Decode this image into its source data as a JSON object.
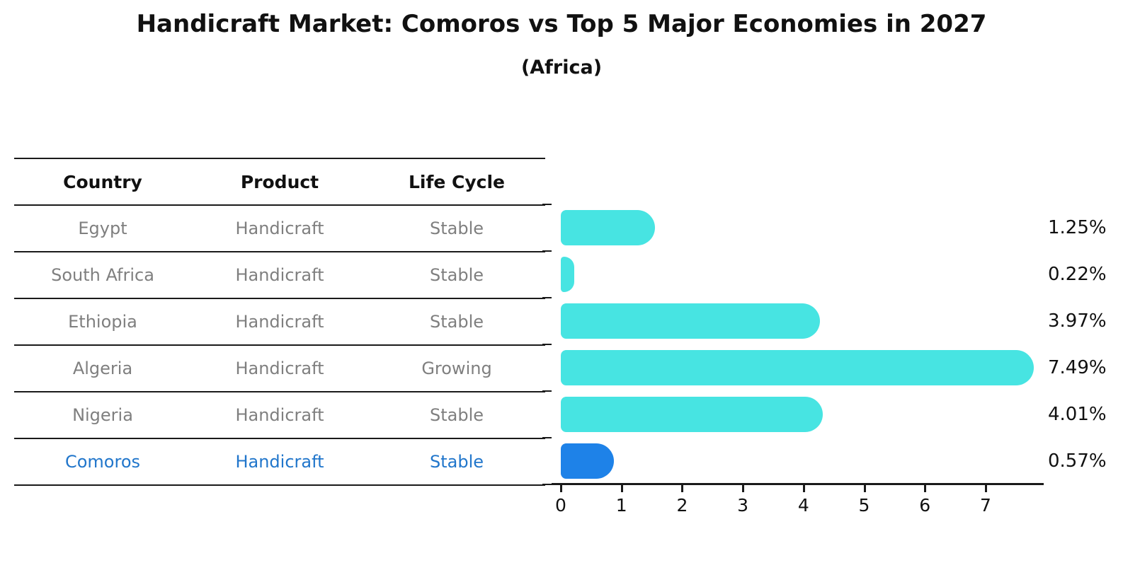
{
  "title": "Handicraft Market: Comoros vs Top 5 Major Economies in 2027",
  "subtitle": "(Africa)",
  "table": {
    "headers": [
      "Country",
      "Product",
      "Life Cycle"
    ],
    "rows": [
      {
        "country": "Egypt",
        "product": "Handicraft",
        "life_cycle": "Stable",
        "highlight": false
      },
      {
        "country": "South Africa",
        "product": "Handicraft",
        "life_cycle": "Stable",
        "highlight": false
      },
      {
        "country": "Ethiopia",
        "product": "Handicraft",
        "life_cycle": "Stable",
        "highlight": false
      },
      {
        "country": "Algeria",
        "product": "Handicraft",
        "life_cycle": "Growing",
        "highlight": false
      },
      {
        "country": "Nigeria",
        "product": "Handicraft",
        "life_cycle": "Stable",
        "highlight": false
      },
      {
        "country": "Comoros",
        "product": "Handicraft",
        "life_cycle": "Stable",
        "highlight": true
      }
    ]
  },
  "chart_data": {
    "type": "bar",
    "orientation": "horizontal",
    "title": "Handicraft Market: Comoros vs Top 5 Major Economies in 2027",
    "subtitle": "(Africa)",
    "categories": [
      "Egypt",
      "South Africa",
      "Ethiopia",
      "Algeria",
      "Nigeria",
      "Comoros"
    ],
    "values": [
      1.25,
      0.22,
      3.97,
      7.49,
      4.01,
      0.57
    ],
    "value_labels": [
      "1.25%",
      "0.22%",
      "3.97%",
      "7.49%",
      "4.01%",
      "0.57%"
    ],
    "life_cycle": [
      "Stable",
      "Stable",
      "Stable",
      "Growing",
      "Stable",
      "Stable"
    ],
    "x_tick_labels": [
      "0",
      "1",
      "2",
      "3",
      "4",
      "5",
      "6",
      "7"
    ],
    "xlim": [
      0,
      8.1
    ],
    "grid": false,
    "legend": false,
    "highlight_index": 5
  },
  "colors": {
    "bar": "#47e4e2",
    "highlight_bar": "#1e82e8",
    "highlight_border": "#1e82e8",
    "highlight_text": "#2176cb",
    "row_text": "#7f7f7f",
    "axis": "#1a1a1a",
    "label_text": "#111111"
  }
}
